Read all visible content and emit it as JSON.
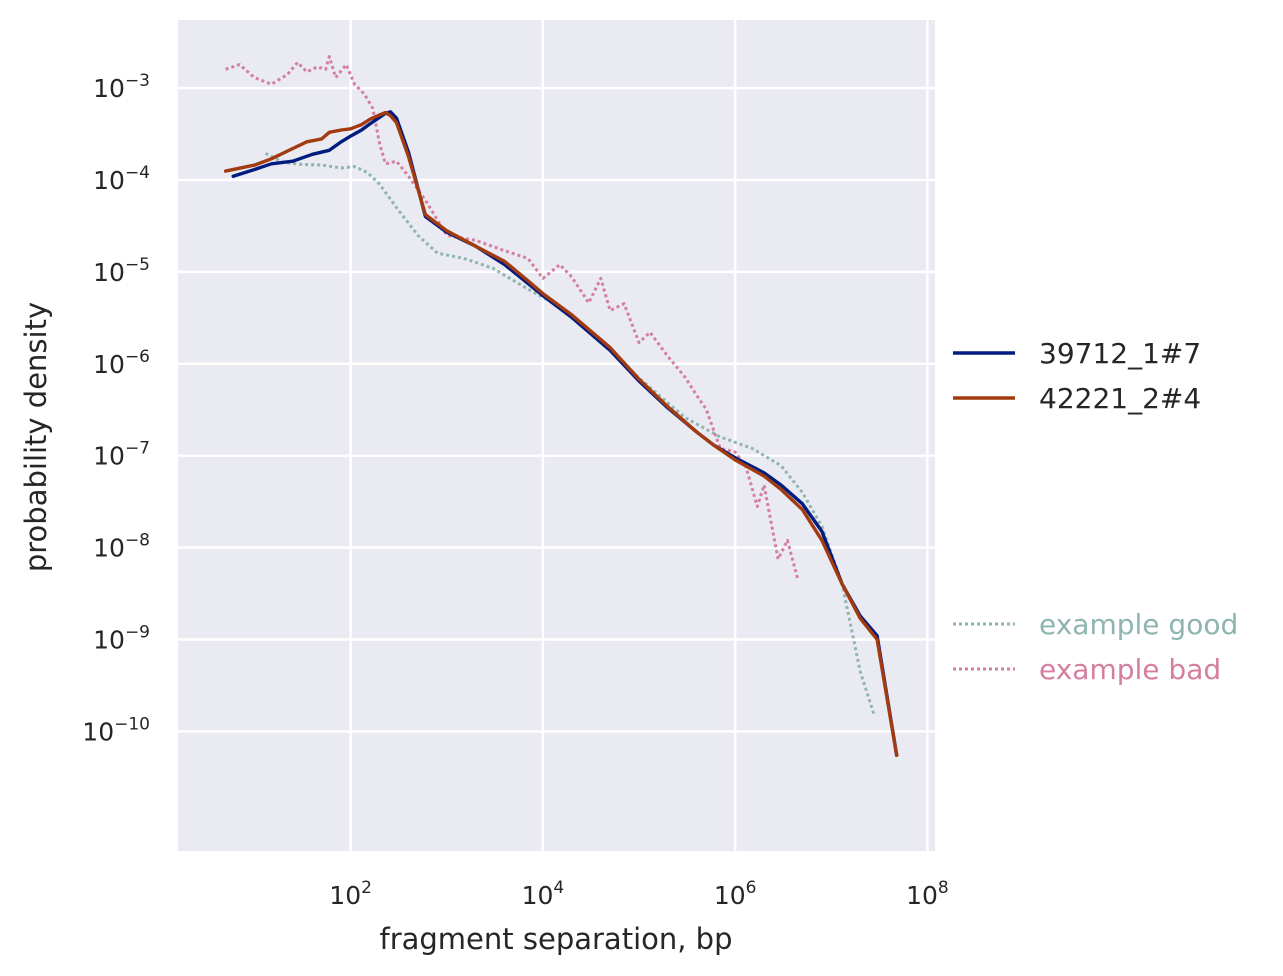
{
  "chart_data": {
    "type": "line",
    "xlabel": "fragment separation, bp",
    "ylabel": "probability density",
    "x_scale": "log",
    "y_scale": "log",
    "xlim": [
      1.6,
      120000000
    ],
    "ylim": [
      5e-12,
      0.0055
    ],
    "grid": true,
    "legend_placement": "right",
    "x_ticks": [
      {
        "value": 100,
        "base": "10",
        "exp": "2"
      },
      {
        "value": 10000,
        "base": "10",
        "exp": "4"
      },
      {
        "value": 1000000,
        "base": "10",
        "exp": "6"
      },
      {
        "value": 100000000,
        "base": "10",
        "exp": "8"
      }
    ],
    "y_ticks": [
      {
        "value": 0.001,
        "base": "10",
        "exp": "−3"
      },
      {
        "value": 0.0001,
        "base": "10",
        "exp": "−4"
      },
      {
        "value": 1e-05,
        "base": "10",
        "exp": "−5"
      },
      {
        "value": 1e-06,
        "base": "10",
        "exp": "−6"
      },
      {
        "value": 1e-07,
        "base": "10",
        "exp": "−7"
      },
      {
        "value": 1e-08,
        "base": "10",
        "exp": "−8"
      },
      {
        "value": 1e-09,
        "base": "10",
        "exp": "−9"
      },
      {
        "value": 1e-10,
        "base": "10",
        "exp": "−10"
      }
    ],
    "series": [
      {
        "name": "39712_1#7",
        "color": "#001c7f",
        "style": "solid",
        "x": [
          6,
          10,
          15,
          25,
          40,
          60,
          80,
          100,
          130,
          160,
          200,
          230,
          260,
          300,
          400,
          600,
          1000,
          2000,
          4000,
          7000,
          10000,
          20000,
          50000,
          100000,
          200000,
          400000,
          600000,
          1000000,
          2000000,
          3000000,
          5000000,
          8000000,
          13000000,
          20000000,
          30000000,
          48000000
        ],
        "y": [
          0.00011,
          0.00013,
          0.00015,
          0.00016,
          0.00019,
          0.00021,
          0.00026,
          0.0003,
          0.00035,
          0.00041,
          0.00048,
          0.00053,
          0.00055,
          0.00047,
          0.0002,
          4e-05,
          2.7e-05,
          1.9e-05,
          1.2e-05,
          7.5e-06,
          5.5e-06,
          3.2e-06,
          1.4e-06,
          6.5e-07,
          3.3e-07,
          1.8e-07,
          1.3e-07,
          9.5e-08,
          6.5e-08,
          4.8e-08,
          3e-08,
          1.5e-08,
          4e-09,
          1.8e-09,
          1.1e-09,
          5.5e-11
        ]
      },
      {
        "name": "42221_2#4",
        "color": "#a23b10",
        "style": "solid",
        "x": [
          5,
          10,
          15,
          25,
          35,
          50,
          60,
          80,
          100,
          130,
          160,
          200,
          230,
          260,
          300,
          400,
          600,
          1000,
          2000,
          4000,
          7000,
          10000,
          20000,
          50000,
          100000,
          200000,
          400000,
          600000,
          1000000,
          2000000,
          3000000,
          5000000,
          8000000,
          13000000,
          20000000,
          30000000,
          48000000
        ],
        "y": [
          0.000125,
          0.000145,
          0.00017,
          0.00022,
          0.00026,
          0.00028,
          0.00033,
          0.00035,
          0.00036,
          0.0004,
          0.00046,
          0.00051,
          0.00054,
          0.0005,
          0.00042,
          0.00018,
          4.2e-05,
          2.8e-05,
          1.9e-05,
          1.3e-05,
          8e-06,
          5.8e-06,
          3.4e-06,
          1.5e-06,
          6.8e-07,
          3.4e-07,
          1.8e-07,
          1.3e-07,
          9e-08,
          6e-08,
          4.3e-08,
          2.6e-08,
          1.2e-08,
          4e-09,
          1.7e-09,
          1e-09,
          5.5e-11
        ]
      },
      {
        "name": "example good",
        "color": "#8fb5b0",
        "style": "dotted",
        "x": [
          13,
          20,
          30,
          50,
          80,
          110,
          150,
          200,
          300,
          500,
          800,
          1500,
          3000,
          7000,
          15000,
          40000,
          100000,
          300000,
          700000,
          1500000,
          3000000,
          5000000,
          8000000,
          13000000,
          20000000,
          28000000
        ],
        "y": [
          0.000195,
          0.000155,
          0.000148,
          0.000145,
          0.000135,
          0.00014,
          0.00012,
          9e-05,
          5e-05,
          2.5e-05,
          1.6e-05,
          1.4e-05,
          1.1e-05,
          6.5e-06,
          4.2e-06,
          1.8e-06,
          7e-07,
          2.6e-07,
          1.6e-07,
          1.2e-07,
          7.8e-08,
          4e-08,
          1.7e-08,
          4e-09,
          4.5e-10,
          1.5e-10
        ]
      },
      {
        "name": "example bad",
        "color": "#d47fa0",
        "style": "dotted",
        "x": [
          5,
          7,
          10,
          15,
          22,
          28,
          35,
          45,
          55,
          60,
          70,
          90,
          110,
          140,
          170,
          200,
          230,
          300,
          400,
          600,
          1000,
          2000,
          4000,
          7000,
          10000,
          15000,
          20000,
          30000,
          40000,
          50000,
          70000,
          100000,
          130000,
          200000,
          300000,
          400000,
          500000,
          700000,
          1000000,
          1300000,
          1700000,
          2000000,
          2300000,
          2800000,
          3500000,
          4500000
        ],
        "y": [
          0.0016,
          0.0018,
          0.0013,
          0.0011,
          0.0014,
          0.0019,
          0.0015,
          0.0017,
          0.0016,
          0.0022,
          0.0013,
          0.0018,
          0.0011,
          0.00085,
          0.0006,
          0.00025,
          0.00015,
          0.00016,
          0.00011,
          6e-05,
          2.5e-05,
          2.2e-05,
          1.7e-05,
          1.4e-05,
          8.5e-06,
          1.2e-05,
          8.8e-06,
          4.6e-06,
          8.5e-06,
          3.8e-06,
          4.5e-06,
          1.7e-06,
          2.2e-06,
          1.2e-06,
          7.2e-07,
          4.5e-07,
          3.2e-07,
          1.2e-07,
          1.1e-07,
          7.5e-08,
          2.8e-08,
          4.8e-08,
          2.2e-08,
          7.5e-09,
          1.2e-08,
          4.5e-09
        ]
      }
    ]
  }
}
